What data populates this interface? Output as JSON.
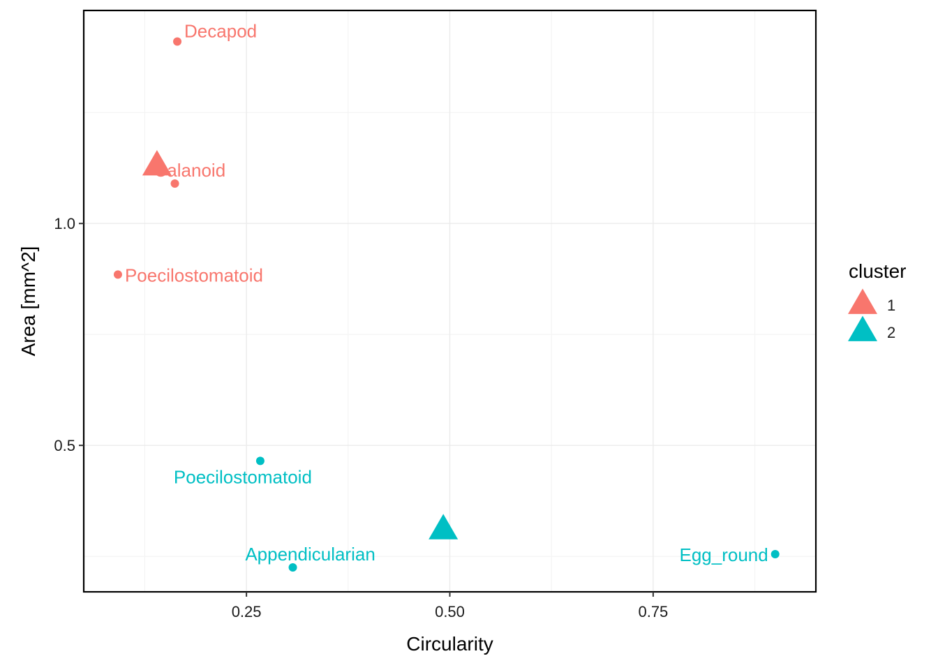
{
  "chart_data": {
    "type": "scatter",
    "title": "",
    "xlabel": "Circularity",
    "ylabel": "Area  [mm^2]",
    "xlim": [
      0.05,
      0.95
    ],
    "ylim": [
      0.17,
      1.48
    ],
    "x_ticks": [
      0.25,
      0.5,
      0.75
    ],
    "x_tick_labels": [
      "0.25",
      "0.50",
      "0.75"
    ],
    "y_ticks": [
      0.5,
      1.0
    ],
    "y_tick_labels": [
      "0.5",
      "1.0"
    ],
    "grid": true,
    "legend": {
      "title": "cluster",
      "position": "right",
      "entries": [
        {
          "label": "1",
          "color": "#F8766D"
        },
        {
          "label": "2",
          "color": "#00BFC4"
        }
      ]
    },
    "series": [
      {
        "name": "1",
        "color": "#F8766D",
        "points": [
          {
            "x": 0.165,
            "y": 1.41,
            "label": "Decapod"
          },
          {
            "x": 0.162,
            "y": 1.09,
            "label": "Calanoid"
          },
          {
            "x": 0.092,
            "y": 0.885,
            "label": "Poecilostomatoid"
          }
        ],
        "centroid": {
          "x": 0.14,
          "y": 1.13
        }
      },
      {
        "name": "2",
        "color": "#00BFC4",
        "points": [
          {
            "x": 0.267,
            "y": 0.465,
            "label": "Poecilostomatoid"
          },
          {
            "x": 0.307,
            "y": 0.225,
            "label": "Appendicularian"
          },
          {
            "x": 0.9,
            "y": 0.255,
            "label": "Egg_round"
          }
        ],
        "centroid": {
          "x": 0.492,
          "y": 0.31
        }
      }
    ]
  }
}
